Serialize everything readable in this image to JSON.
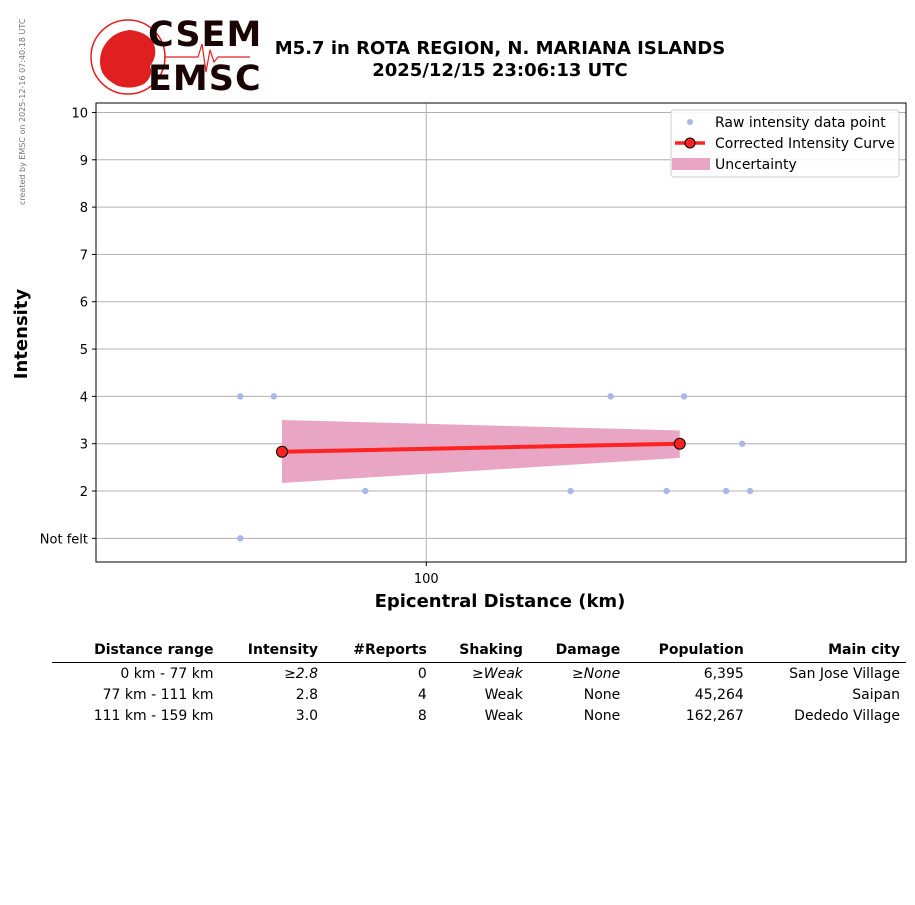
{
  "side_note": "created by EMSC on 2025-12-16 07:40:18 UTC",
  "logo": {
    "top_word": "CSEM",
    "bottom_word": "EMSC"
  },
  "header": {
    "title_line1": "M5.7 in ROTA REGION, N. MARIANA ISLANDS",
    "title_line2": "2025/12/15 23:06:13 UTC"
  },
  "chart_data": {
    "type": "scatter",
    "xlabel": "Epicentral Distance (km)",
    "ylabel": "Intensity",
    "x_scale": "log",
    "xlim": [
      60,
      210
    ],
    "ylim": [
      0.5,
      10.2
    ],
    "x_ticks": [
      100
    ],
    "x_tick_labels": [
      "100"
    ],
    "y_ticks": [
      1,
      2,
      3,
      4,
      5,
      6,
      7,
      8,
      9,
      10
    ],
    "y_tick_labels": [
      "Not felt",
      "2",
      "3",
      "4",
      "5",
      "6",
      "7",
      "8",
      "9",
      "10"
    ],
    "grid": true,
    "legend_placement": "top-right",
    "legend": [
      "Raw intensity data point",
      "Corrected Intensity Curve",
      "Uncertainty"
    ],
    "series": [
      {
        "name": "Raw intensity data point",
        "kind": "scatter",
        "color": "#aab8e8",
        "points": [
          [
            75,
            4
          ],
          [
            79,
            4
          ],
          [
            75,
            1
          ],
          [
            91,
            2
          ],
          [
            133,
            4
          ],
          [
            125,
            2
          ],
          [
            145,
            2
          ],
          [
            149,
            4
          ],
          [
            163,
            3
          ],
          [
            159,
            2
          ],
          [
            165,
            2
          ]
        ]
      },
      {
        "name": "Corrected Intensity Curve",
        "kind": "line",
        "color": "#ff2222",
        "points": [
          [
            80,
            2.83
          ],
          [
            148,
            3.0
          ]
        ]
      },
      {
        "name": "Uncertainty",
        "kind": "band",
        "color": "#e8a6c4",
        "x": [
          80,
          148
        ],
        "lower": [
          2.17,
          2.7
        ],
        "upper": [
          3.5,
          3.28
        ]
      }
    ]
  },
  "table": {
    "headers": [
      "Distance range",
      "Intensity",
      "#Reports",
      "Shaking",
      "Damage",
      "Population",
      "Main city"
    ],
    "rows": [
      [
        "0 km -   77 km",
        "≥2.8",
        "0",
        "≥Weak",
        "≥None",
        "6,395",
        "San Jose Village"
      ],
      [
        "77 km -  111 km",
        "2.8",
        "4",
        "Weak",
        "None",
        "45,264",
        "Saipan"
      ],
      [
        "111 km -  159 km",
        "3.0",
        "8",
        "Weak",
        "None",
        "162,267",
        "Dededo Village"
      ]
    ]
  }
}
